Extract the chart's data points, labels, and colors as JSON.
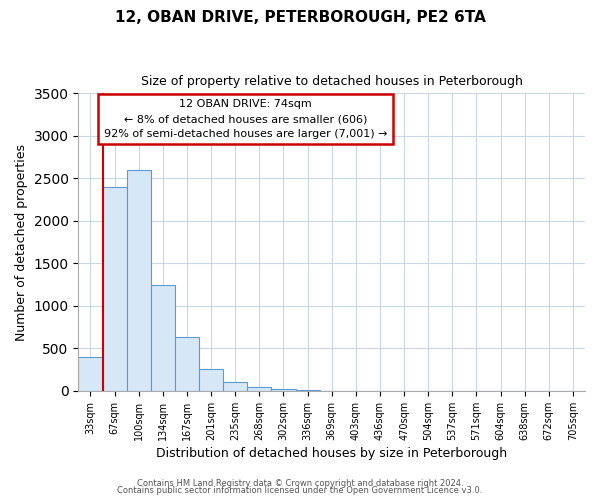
{
  "title": "12, OBAN DRIVE, PETERBOROUGH, PE2 6TA",
  "subtitle": "Size of property relative to detached houses in Peterborough",
  "xlabel": "Distribution of detached houses by size in Peterborough",
  "ylabel": "Number of detached properties",
  "bar_labels": [
    "33sqm",
    "67sqm",
    "100sqm",
    "134sqm",
    "167sqm",
    "201sqm",
    "235sqm",
    "268sqm",
    "302sqm",
    "336sqm",
    "369sqm",
    "403sqm",
    "436sqm",
    "470sqm",
    "504sqm",
    "537sqm",
    "571sqm",
    "604sqm",
    "638sqm",
    "672sqm",
    "705sqm"
  ],
  "bar_values": [
    400,
    2400,
    2600,
    1250,
    640,
    260,
    100,
    50,
    25,
    10,
    3,
    0,
    0,
    0,
    0,
    0,
    0,
    0,
    0,
    0,
    0
  ],
  "bar_fill_color": "#d6e8f7",
  "bar_edge_color": "#5b9bd5",
  "annotation_title": "12 OBAN DRIVE: 74sqm",
  "annotation_line1": "← 8% of detached houses are smaller (606)",
  "annotation_line2": "92% of semi-detached houses are larger (7,001) →",
  "annotation_box_facecolor": "#ffffff",
  "annotation_box_edgecolor": "#cc0000",
  "vline_color": "#cc0000",
  "vline_x_bar_index": 1,
  "ylim": [
    0,
    3500
  ],
  "yticks": [
    0,
    500,
    1000,
    1500,
    2000,
    2500,
    3000,
    3500
  ],
  "footer_line1": "Contains HM Land Registry data © Crown copyright and database right 2024.",
  "footer_line2": "Contains public sector information licensed under the Open Government Licence v3.0.",
  "background_color": "#ffffff",
  "grid_color": "#c8d8e8",
  "title_fontsize": 11,
  "subtitle_fontsize": 9,
  "ylabel_fontsize": 9,
  "xlabel_fontsize": 9,
  "tick_fontsize": 7,
  "annotation_fontsize": 8,
  "footer_fontsize": 6
}
